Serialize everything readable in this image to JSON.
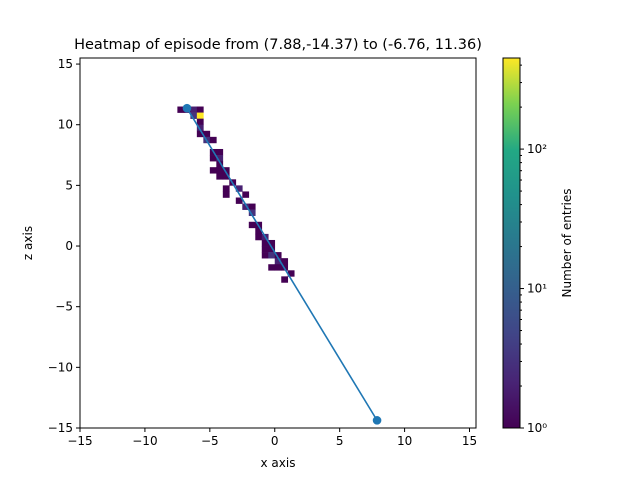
{
  "chart_data": {
    "type": "heatmap",
    "title": "Heatmap of episode from (7.88,-14.37) to (-6.76, 11.36)",
    "xlabel": "x axis",
    "ylabel": "z axis",
    "xlim": [
      -15,
      15.5
    ],
    "ylim": [
      -15,
      15.5
    ],
    "x_ticks": [
      -15,
      -10,
      -5,
      0,
      5,
      10,
      15
    ],
    "x_tick_labels": [
      "−15",
      "−10",
      "−5",
      "0",
      "5",
      "10",
      "15"
    ],
    "y_ticks": [
      -15,
      -10,
      -5,
      0,
      5,
      10,
      15
    ],
    "y_tick_labels": [
      "−15",
      "−10",
      "−5",
      "0",
      "5",
      "10",
      "15"
    ],
    "grid": false,
    "colormap": "viridis",
    "colorbar": {
      "label": "Number of entries",
      "scale": "log",
      "range": [
        1,
        450
      ],
      "ticks": [
        1,
        10,
        100
      ],
      "tick_labels": [
        "10⁰",
        "10¹",
        "10²"
      ]
    },
    "cell_size": 0.5,
    "cells": [
      {
        "x": -7.5,
        "z": 11.0,
        "count": 1
      },
      {
        "x": -7.0,
        "z": 11.0,
        "count": 1
      },
      {
        "x": -6.5,
        "z": 11.0,
        "count": 2
      },
      {
        "x": -6.5,
        "z": 10.5,
        "count": 3
      },
      {
        "x": -6.0,
        "z": 11.0,
        "count": 1
      },
      {
        "x": -6.0,
        "z": 10.5,
        "count": 450
      },
      {
        "x": -6.0,
        "z": 10.0,
        "count": 1
      },
      {
        "x": -6.0,
        "z": 9.5,
        "count": 2
      },
      {
        "x": -6.0,
        "z": 9.0,
        "count": 1
      },
      {
        "x": -5.5,
        "z": 9.0,
        "count": 1
      },
      {
        "x": -5.5,
        "z": 8.5,
        "count": 3
      },
      {
        "x": -5.0,
        "z": 8.5,
        "count": 1
      },
      {
        "x": -5.0,
        "z": 7.5,
        "count": 1
      },
      {
        "x": -5.0,
        "z": 7.0,
        "count": 1
      },
      {
        "x": -4.5,
        "z": 7.5,
        "count": 1
      },
      {
        "x": -4.5,
        "z": 7.0,
        "count": 2
      },
      {
        "x": -4.5,
        "z": 6.5,
        "count": 1
      },
      {
        "x": -5.0,
        "z": 6.0,
        "count": 1
      },
      {
        "x": -4.5,
        "z": 6.0,
        "count": 1
      },
      {
        "x": -4.5,
        "z": 5.5,
        "count": 1
      },
      {
        "x": -4.0,
        "z": 6.0,
        "count": 1
      },
      {
        "x": -4.0,
        "z": 5.5,
        "count": 1
      },
      {
        "x": -4.0,
        "z": 4.5,
        "count": 1
      },
      {
        "x": -4.0,
        "z": 4.0,
        "count": 1
      },
      {
        "x": -3.5,
        "z": 5.0,
        "count": 1
      },
      {
        "x": -3.0,
        "z": 4.5,
        "count": 2
      },
      {
        "x": -3.0,
        "z": 3.5,
        "count": 1
      },
      {
        "x": -2.5,
        "z": 4.0,
        "count": 1
      },
      {
        "x": -2.5,
        "z": 3.0,
        "count": 2
      },
      {
        "x": -2.0,
        "z": 3.0,
        "count": 1
      },
      {
        "x": -2.0,
        "z": 2.5,
        "count": 3
      },
      {
        "x": -2.0,
        "z": 1.5,
        "count": 1
      },
      {
        "x": -1.5,
        "z": 1.5,
        "count": 1
      },
      {
        "x": -1.5,
        "z": 1.0,
        "count": 1
      },
      {
        "x": -1.5,
        "z": 0.5,
        "count": 1
      },
      {
        "x": -1.0,
        "z": 0.5,
        "count": 2
      },
      {
        "x": -1.0,
        "z": 0.0,
        "count": 1
      },
      {
        "x": -1.0,
        "z": -0.5,
        "count": 1
      },
      {
        "x": -1.0,
        "z": -1.0,
        "count": 1
      },
      {
        "x": -0.5,
        "z": 0.0,
        "count": 1
      },
      {
        "x": -0.5,
        "z": -0.5,
        "count": 1
      },
      {
        "x": -0.5,
        "z": -1.0,
        "count": 3
      },
      {
        "x": -0.5,
        "z": -2.0,
        "count": 1
      },
      {
        "x": 0.0,
        "z": -1.0,
        "count": 1
      },
      {
        "x": 0.0,
        "z": -1.5,
        "count": 2
      },
      {
        "x": 0.0,
        "z": -2.0,
        "count": 1
      },
      {
        "x": 0.5,
        "z": -1.5,
        "count": 1
      },
      {
        "x": 0.5,
        "z": -2.0,
        "count": 1
      },
      {
        "x": 0.5,
        "z": -3.0,
        "count": 1
      },
      {
        "x": 1.0,
        "z": -2.5,
        "count": 1
      }
    ],
    "trajectory": {
      "color": "#1f77b4",
      "start": {
        "x": 7.88,
        "z": -14.37
      },
      "end": {
        "x": -6.76,
        "z": 11.36
      }
    }
  }
}
